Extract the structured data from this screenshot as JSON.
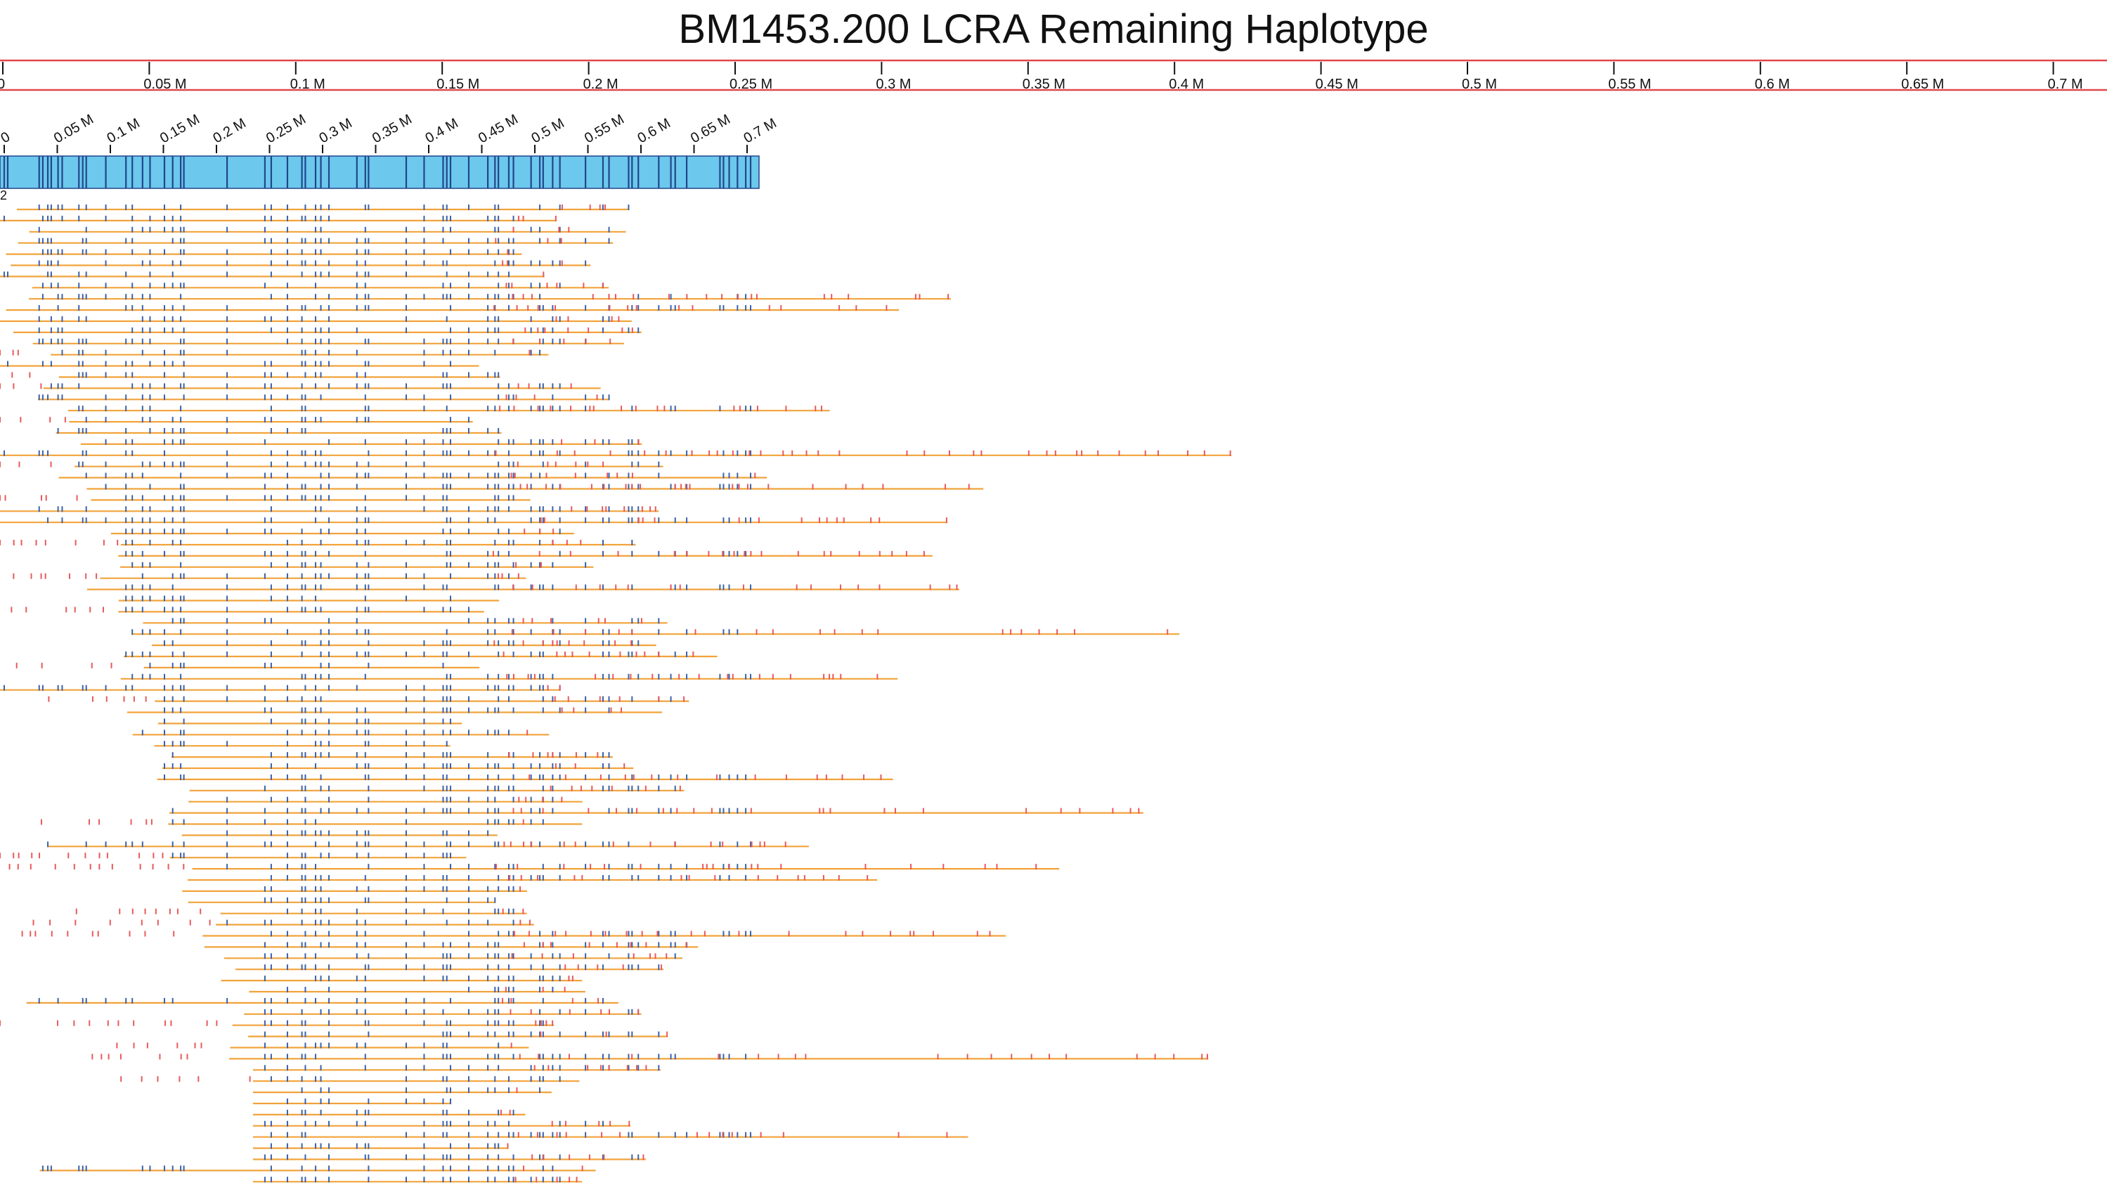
{
  "title": "BM1453.200 LCRA Remaining Haplotype",
  "colors": {
    "frame": "#e0474c",
    "scale_tick": "#111111",
    "reference_fill": "#6cc8ec",
    "reference_site": "#21468c",
    "molecule_line": "#f2a33a",
    "label_match": "#3c62a8",
    "label_unmatched": "#e85a5a"
  },
  "top_scale": {
    "unit": "M",
    "range": [
      0,
      0.72
    ],
    "labels": [
      "0",
      "0.05 M",
      "0.1 M",
      "0.15 M",
      "0.2 M",
      "0.25 M",
      "0.3 M",
      "0.35 M",
      "0.4 M",
      "0.45 M",
      "0.5 M",
      "0.55 M",
      "0.6 M",
      "0.65 M",
      "0.7 M"
    ]
  },
  "reference_map": {
    "id_label": "2",
    "length": 0.26,
    "scale_labels": [
      "0",
      "0.05 M",
      "0.1 M",
      "0.15 M",
      "0.2 M",
      "0.25 M",
      "0.3 M",
      "0.35 M",
      "0.4 M",
      "0.45 M",
      "0.5 M",
      "0.55 M",
      "0.6 M",
      "0.65 M",
      "0.7 M"
    ]
  },
  "aligned_molecules": {
    "count": 90,
    "description_counts_only": true
  }
}
